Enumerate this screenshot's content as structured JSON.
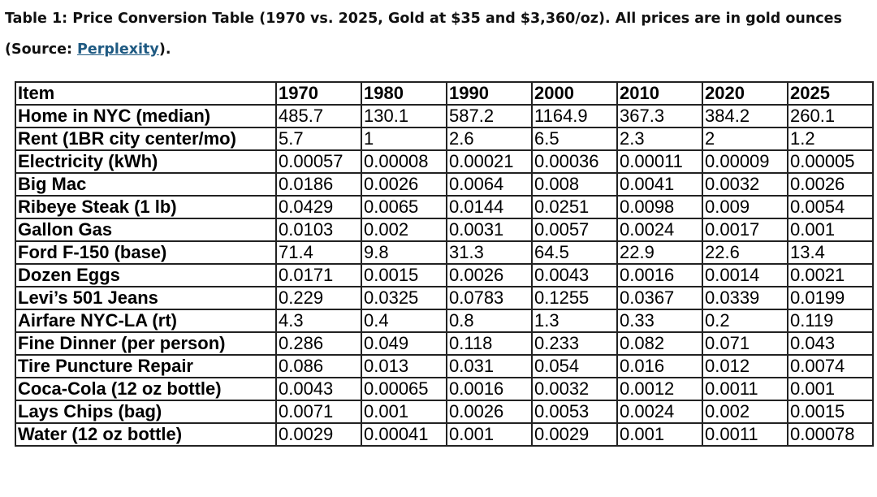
{
  "caption": {
    "text_before": "Table 1: Price Conversion Table (1970 vs. 2025, Gold at $35 and $3,360/oz). All prices are in gold ounces (Source: ",
    "link": "Perplexity",
    "text_after": ")."
  },
  "table": {
    "headers": [
      "Item",
      "1970",
      "1980",
      "1990",
      "2000",
      "2010",
      "2020",
      "2025"
    ],
    "rows": [
      [
        "Home in NYC (median)",
        "485.7",
        "130.1",
        "587.2",
        "1164.9",
        "367.3",
        "384.2",
        "260.1"
      ],
      [
        "Rent (1BR  city center/mo)",
        "5.7",
        "1",
        "2.6",
        "6.5",
        "2.3",
        "2",
        "1.2"
      ],
      [
        "Electricity (kWh)",
        "0.00057",
        "0.00008",
        "0.00021",
        "0.00036",
        "0.00011",
        "0.00009",
        "0.00005"
      ],
      [
        "Big Mac",
        "0.0186",
        "0.0026",
        "0.0064",
        "0.008",
        "0.0041",
        "0.0032",
        "0.0026"
      ],
      [
        "Ribeye Steak (1 lb)",
        "0.0429",
        "0.0065",
        "0.0144",
        "0.0251",
        "0.0098",
        "0.009",
        "0.0054"
      ],
      [
        "Gallon Gas",
        "0.0103",
        "0.002",
        "0.0031",
        "0.0057",
        "0.0024",
        "0.0017",
        "0.001"
      ],
      [
        "Ford F-150 (base)",
        "71.4",
        "9.8",
        "31.3",
        "64.5",
        "22.9",
        "22.6",
        "13.4"
      ],
      [
        "Dozen Eggs",
        "0.0171",
        "0.0015",
        "0.0026",
        "0.0043",
        "0.0016",
        "0.0014",
        "0.0021"
      ],
      [
        "Levi’s 501 Jeans",
        "0.229",
        "0.0325",
        "0.0783",
        "0.1255",
        "0.0367",
        "0.0339",
        "0.0199"
      ],
      [
        "Airfare NYC-LA (rt)",
        "4.3",
        "0.4",
        "0.8",
        "1.3",
        "0.33",
        "0.2",
        "0.119"
      ],
      [
        "Fine Dinner (per person)",
        "0.286",
        "0.049",
        "0.118",
        "0.233",
        "0.082",
        "0.071",
        "0.043"
      ],
      [
        "Tire Puncture Repair",
        "0.086",
        "0.013",
        "0.031",
        "0.054",
        "0.016",
        "0.012",
        "0.0074"
      ],
      [
        "Coca-Cola (12 oz bottle)",
        "0.0043",
        "0.00065",
        "0.0016",
        "0.0032",
        "0.0012",
        "0.0011",
        "0.001"
      ],
      [
        "Lays Chips (bag)",
        "0.0071",
        "0.001",
        "0.0026",
        "0.0053",
        "0.0024",
        "0.002",
        "0.0015"
      ],
      [
        "Water (12 oz bottle)",
        "0.0029",
        "0.00041",
        "0.001",
        "0.0029",
        "0.001",
        "0.0011",
        "0.00078"
      ]
    ]
  }
}
